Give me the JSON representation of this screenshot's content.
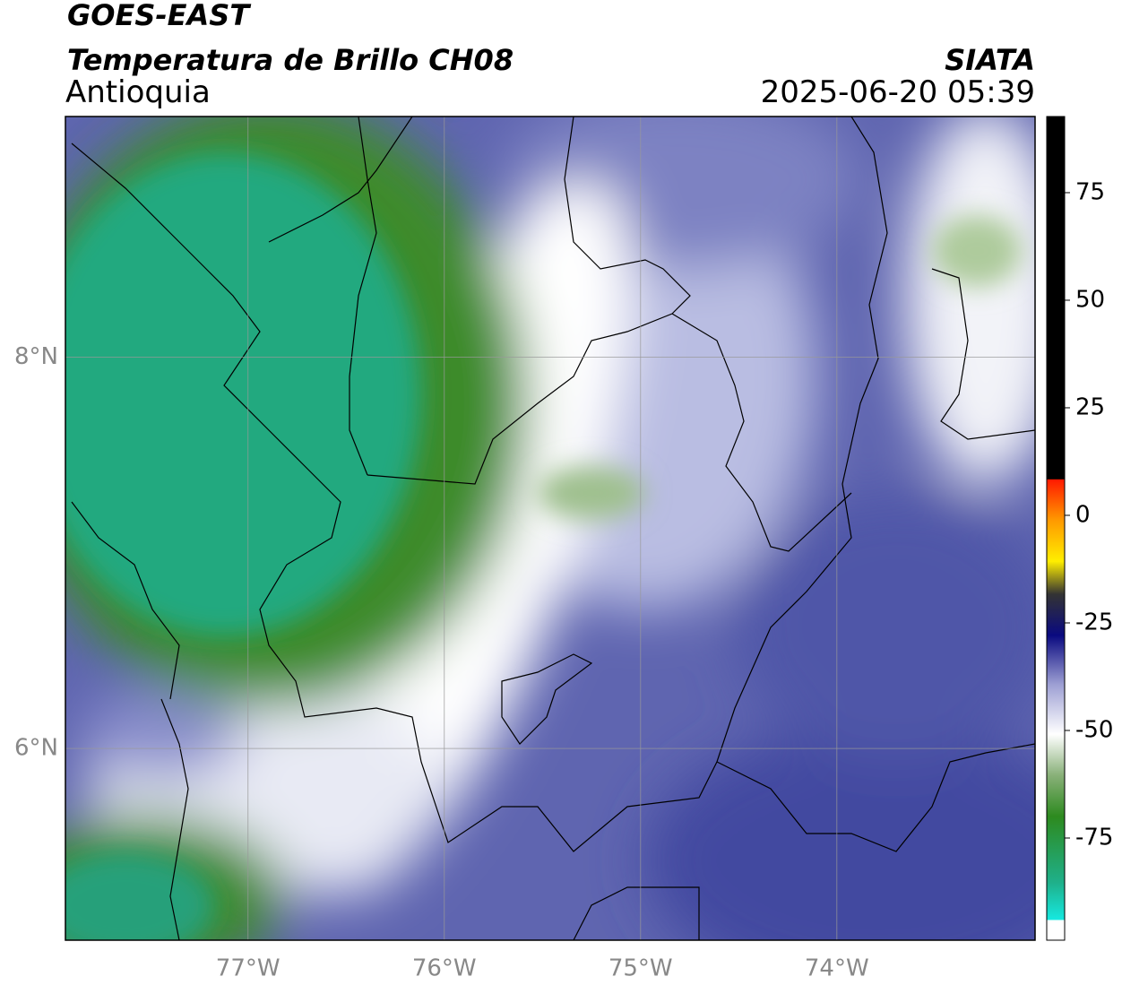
{
  "header": {
    "title": "GOES-EAST",
    "subtitle": "Temperatura de Brillo CH08",
    "region": "Antioquia",
    "source": "SIATA",
    "timestamp": "2025-06-20 05:39"
  },
  "map": {
    "lon_range": [
      -77.93,
      -72.99
    ],
    "lat_range": [
      5.02,
      9.23
    ],
    "lon_ticks": [
      {
        "value": -77,
        "label": "77°W"
      },
      {
        "value": -76,
        "label": "76°W"
      },
      {
        "value": -75,
        "label": "75°W"
      },
      {
        "value": -74,
        "label": "74°W"
      }
    ],
    "lat_ticks": [
      {
        "value": 8,
        "label": "8°N"
      },
      {
        "value": 6,
        "label": "6°N"
      }
    ]
  },
  "colorbar": {
    "range": [
      -98.75,
      92.7
    ],
    "ticks": [
      75,
      50,
      25,
      0,
      -25,
      -50,
      -75
    ]
  }
}
